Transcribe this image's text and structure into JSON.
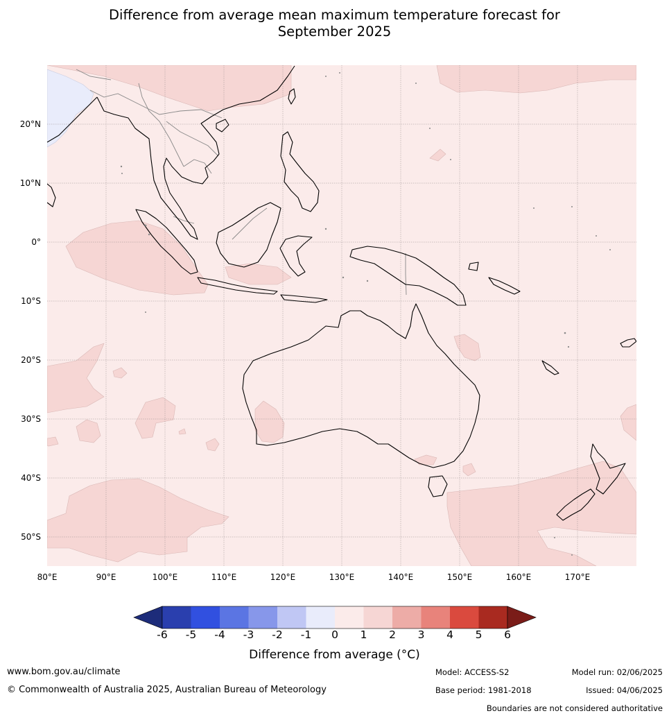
{
  "title_line1": "Difference from average mean maximum temperature forecast for",
  "title_line2": "September 2025",
  "map": {
    "lon_range": [
      80,
      180
    ],
    "lat_range": [
      -55,
      30
    ],
    "lat_labels": [
      "20°N",
      "10°N",
      "0°",
      "10°S",
      "20°S",
      "30°S",
      "40°S",
      "50°S"
    ],
    "lon_labels": [
      "80°E",
      "90°E",
      "100°E",
      "110°E",
      "120°E",
      "130°E",
      "140°E",
      "150°E",
      "160°E",
      "170°E"
    ],
    "background_class": "0 to 1",
    "background_color": "#fbebea",
    "warm_patch_color": "#f6d6d4",
    "cool_patch_color": "#e9ecfb",
    "coastline_color": "#000000",
    "border_color": "#888888"
  },
  "colorbar": {
    "title": "Difference from average (°C)",
    "tick_labels": [
      "-6",
      "-5",
      "-4",
      "-3",
      "-2",
      "-1",
      "0",
      "1",
      "2",
      "3",
      "4",
      "5",
      "6"
    ],
    "low_extend_color": "#1d2c7a",
    "high_extend_color": "#7a1c18",
    "colors": [
      "#2a3fae",
      "#3150e0",
      "#5b75e3",
      "#8797ea",
      "#c0c7f4",
      "#e9ecfb",
      "#fbebea",
      "#f6d6d4",
      "#edaca7",
      "#e8837b",
      "#da4a3e",
      "#a92a20"
    ]
  },
  "footer": {
    "website": "www.bom.gov.au/climate",
    "copyright": "© Commonwealth of Australia 2025, Australian Bureau of Meteorology",
    "model": "Model: ACCESS-S2",
    "base_period": "Base period: 1981-2018",
    "model_run": "Model run: 02/06/2025",
    "issued": "Issued: 04/06/2025",
    "disclaimer": "Boundaries are not considered authoritative"
  }
}
